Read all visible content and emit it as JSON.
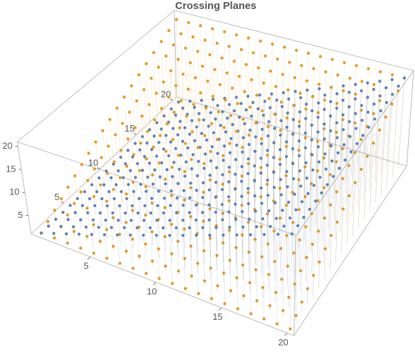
{
  "chart_data": {
    "type": "scatter3d",
    "title": "Crossing Planes",
    "x": [
      1,
      2,
      3,
      4,
      5,
      6,
      7,
      8,
      9,
      10,
      11,
      12,
      13,
      14,
      15,
      16,
      17,
      18,
      19,
      20
    ],
    "y": [
      1,
      2,
      3,
      4,
      5,
      6,
      7,
      8,
      9,
      10,
      11,
      12,
      13,
      14,
      15,
      16,
      17,
      18,
      19,
      20
    ],
    "series": [
      {
        "color": "#e19c24",
        "values": [
          [
            1,
            2,
            3,
            4,
            5,
            6,
            7,
            8,
            9,
            10,
            11,
            12,
            13,
            14,
            15,
            16,
            17,
            18,
            19,
            20
          ],
          [
            1,
            2,
            3,
            4,
            5,
            6,
            7,
            8,
            9,
            10,
            11,
            12,
            13,
            14,
            15,
            16,
            17,
            18,
            19,
            20
          ],
          [
            1,
            2,
            3,
            4,
            5,
            6,
            7,
            8,
            9,
            10,
            11,
            12,
            13,
            14,
            15,
            16,
            17,
            18,
            19,
            20
          ],
          [
            1,
            2,
            3,
            4,
            5,
            6,
            7,
            8,
            9,
            10,
            11,
            12,
            13,
            14,
            15,
            16,
            17,
            18,
            19,
            20
          ],
          [
            1,
            2,
            3,
            4,
            5,
            6,
            7,
            8,
            9,
            10,
            11,
            12,
            13,
            14,
            15,
            16,
            17,
            18,
            19,
            20
          ],
          [
            1,
            2,
            3,
            4,
            5,
            6,
            7,
            8,
            9,
            10,
            11,
            12,
            13,
            14,
            15,
            16,
            17,
            18,
            19,
            20
          ],
          [
            1,
            2,
            3,
            4,
            5,
            6,
            7,
            8,
            9,
            10,
            11,
            12,
            13,
            14,
            15,
            16,
            17,
            18,
            19,
            20
          ],
          [
            1,
            2,
            3,
            4,
            5,
            6,
            7,
            8,
            9,
            10,
            11,
            12,
            13,
            14,
            15,
            16,
            17,
            18,
            19,
            20
          ],
          [
            1,
            2,
            3,
            4,
            5,
            6,
            7,
            8,
            9,
            10,
            11,
            12,
            13,
            14,
            15,
            16,
            17,
            18,
            19,
            20
          ],
          [
            1,
            2,
            3,
            4,
            5,
            6,
            7,
            8,
            9,
            10,
            11,
            12,
            13,
            14,
            15,
            16,
            17,
            18,
            19,
            20
          ],
          [
            1,
            2,
            3,
            4,
            5,
            6,
            7,
            8,
            9,
            10,
            11,
            12,
            13,
            14,
            15,
            16,
            17,
            18,
            19,
            20
          ],
          [
            1,
            2,
            3,
            4,
            5,
            6,
            7,
            8,
            9,
            10,
            11,
            12,
            13,
            14,
            15,
            16,
            17,
            18,
            19,
            20
          ],
          [
            1,
            2,
            3,
            4,
            5,
            6,
            7,
            8,
            9,
            10,
            11,
            12,
            13,
            14,
            15,
            16,
            17,
            18,
            19,
            20
          ],
          [
            1,
            2,
            3,
            4,
            5,
            6,
            7,
            8,
            9,
            10,
            11,
            12,
            13,
            14,
            15,
            16,
            17,
            18,
            19,
            20
          ],
          [
            1,
            2,
            3,
            4,
            5,
            6,
            7,
            8,
            9,
            10,
            11,
            12,
            13,
            14,
            15,
            16,
            17,
            18,
            19,
            20
          ],
          [
            1,
            2,
            3,
            4,
            5,
            6,
            7,
            8,
            9,
            10,
            11,
            12,
            13,
            14,
            15,
            16,
            17,
            18,
            19,
            20
          ],
          [
            1,
            2,
            3,
            4,
            5,
            6,
            7,
            8,
            9,
            10,
            11,
            12,
            13,
            14,
            15,
            16,
            17,
            18,
            19,
            20
          ],
          [
            1,
            2,
            3,
            4,
            5,
            6,
            7,
            8,
            9,
            10,
            11,
            12,
            13,
            14,
            15,
            16,
            17,
            18,
            19,
            20
          ],
          [
            1,
            2,
            3,
            4,
            5,
            6,
            7,
            8,
            9,
            10,
            11,
            12,
            13,
            14,
            15,
            16,
            17,
            18,
            19,
            20
          ],
          [
            1,
            2,
            3,
            4,
            5,
            6,
            7,
            8,
            9,
            10,
            11,
            12,
            13,
            14,
            15,
            16,
            17,
            18,
            19,
            20
          ]
        ]
      },
      {
        "color": "#5e81b5",
        "values": [
          [
            1,
            1,
            1,
            1,
            1,
            1,
            1,
            1,
            1,
            1,
            1,
            1,
            1,
            1,
            1,
            1,
            1,
            1,
            1,
            1
          ],
          [
            2,
            2,
            2,
            2,
            2,
            2,
            2,
            2,
            2,
            2,
            2,
            2,
            2,
            2,
            2,
            2,
            2,
            2,
            2,
            2
          ],
          [
            3,
            3,
            3,
            3,
            3,
            3,
            3,
            3,
            3,
            3,
            3,
            3,
            3,
            3,
            3,
            3,
            3,
            3,
            3,
            3
          ],
          [
            4,
            4,
            4,
            4,
            4,
            4,
            4,
            4,
            4,
            4,
            4,
            4,
            4,
            4,
            4,
            4,
            4,
            4,
            4,
            4
          ],
          [
            5,
            5,
            5,
            5,
            5,
            5,
            5,
            5,
            5,
            5,
            5,
            5,
            5,
            5,
            5,
            5,
            5,
            5,
            5,
            5
          ],
          [
            6,
            6,
            6,
            6,
            6,
            6,
            6,
            6,
            6,
            6,
            6,
            6,
            6,
            6,
            6,
            6,
            6,
            6,
            6,
            6
          ],
          [
            7,
            7,
            7,
            7,
            7,
            7,
            7,
            7,
            7,
            7,
            7,
            7,
            7,
            7,
            7,
            7,
            7,
            7,
            7,
            7
          ],
          [
            8,
            8,
            8,
            8,
            8,
            8,
            8,
            8,
            8,
            8,
            8,
            8,
            8,
            8,
            8,
            8,
            8,
            8,
            8,
            8
          ],
          [
            9,
            9,
            9,
            9,
            9,
            9,
            9,
            9,
            9,
            9,
            9,
            9,
            9,
            9,
            9,
            9,
            9,
            9,
            9,
            9
          ],
          [
            10,
            10,
            10,
            10,
            10,
            10,
            10,
            10,
            10,
            10,
            10,
            10,
            10,
            10,
            10,
            10,
            10,
            10,
            10,
            10
          ],
          [
            11,
            11,
            11,
            11,
            11,
            11,
            11,
            11,
            11,
            11,
            11,
            11,
            11,
            11,
            11,
            11,
            11,
            11,
            11,
            11
          ],
          [
            12,
            12,
            12,
            12,
            12,
            12,
            12,
            12,
            12,
            12,
            12,
            12,
            12,
            12,
            12,
            12,
            12,
            12,
            12,
            12
          ],
          [
            13,
            13,
            13,
            13,
            13,
            13,
            13,
            13,
            13,
            13,
            13,
            13,
            13,
            13,
            13,
            13,
            13,
            13,
            13,
            13
          ],
          [
            14,
            14,
            14,
            14,
            14,
            14,
            14,
            14,
            14,
            14,
            14,
            14,
            14,
            14,
            14,
            14,
            14,
            14,
            14,
            14
          ],
          [
            15,
            15,
            15,
            15,
            15,
            15,
            15,
            15,
            15,
            15,
            15,
            15,
            15,
            15,
            15,
            15,
            15,
            15,
            15,
            15
          ],
          [
            16,
            16,
            16,
            16,
            16,
            16,
            16,
            16,
            16,
            16,
            16,
            16,
            16,
            16,
            16,
            16,
            16,
            16,
            16,
            16
          ],
          [
            17,
            17,
            17,
            17,
            17,
            17,
            17,
            17,
            17,
            17,
            17,
            17,
            17,
            17,
            17,
            17,
            17,
            17,
            17,
            17
          ],
          [
            18,
            18,
            18,
            18,
            18,
            18,
            18,
            18,
            18,
            18,
            18,
            18,
            18,
            18,
            18,
            18,
            18,
            18,
            18,
            18
          ],
          [
            19,
            19,
            19,
            19,
            19,
            19,
            19,
            19,
            19,
            19,
            19,
            19,
            19,
            19,
            19,
            19,
            19,
            19,
            19,
            19
          ],
          [
            20,
            20,
            20,
            20,
            20,
            20,
            20,
            20,
            20,
            20,
            20,
            20,
            20,
            20,
            20,
            20,
            20,
            20,
            20,
            20
          ]
        ]
      }
    ],
    "xlim": [
      0.5,
      20.5
    ],
    "ylim": [
      0.5,
      20.5
    ],
    "zlim": [
      1,
      21
    ],
    "xticks": [
      5,
      10,
      15,
      20
    ],
    "yticks": [
      5,
      10,
      15,
      20
    ],
    "zticks": [
      5,
      10,
      15,
      20
    ]
  }
}
